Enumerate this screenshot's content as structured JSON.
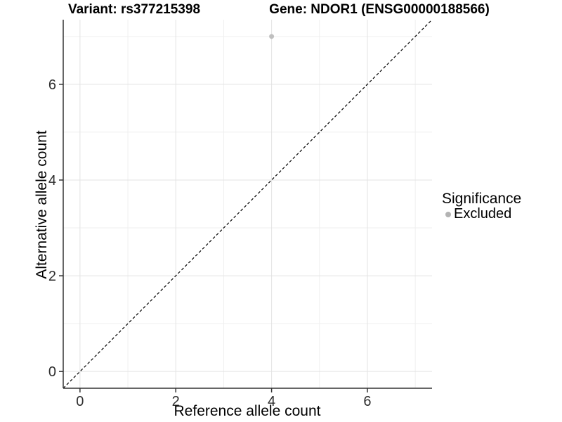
{
  "chart_data": {
    "type": "scatter",
    "title_left": "Variant: rs377215398",
    "title_right": "Gene: NDOR1 (ENSG00000188566)",
    "xlabel": "Reference allele count",
    "ylabel": "Alternative allele count",
    "xlim": [
      -0.35,
      7.35
    ],
    "ylim": [
      -0.35,
      7.35
    ],
    "major_ticks": [
      0,
      2,
      4,
      6
    ],
    "minor_gridlines": [
      1,
      3,
      5,
      7
    ],
    "grid": true,
    "reference_line": {
      "type": "identity",
      "style": "dashed",
      "from": -0.35,
      "to": 7.35
    },
    "series": [
      {
        "name": "Excluded",
        "color": "#bfbfbf",
        "points": [
          {
            "x": 4,
            "y": 7
          }
        ]
      }
    ],
    "legend": {
      "title": "Significance",
      "position": "right",
      "items": [
        {
          "label": "Excluded",
          "color": "#b3b3b3"
        }
      ]
    }
  },
  "colors": {
    "background": "#ffffff",
    "grid_major": "#e3e3e3",
    "grid_minor": "#efefef",
    "axis_line": "#333333",
    "tick_label": "#2e2e2e",
    "reference_line": "#000000"
  }
}
